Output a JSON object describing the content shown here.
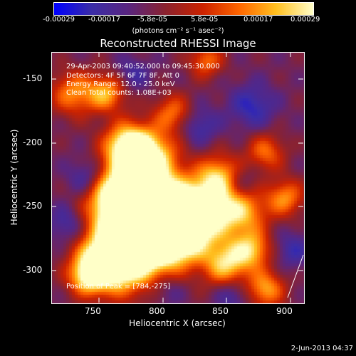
{
  "colorbar": {
    "ticks": [
      "-0.00029",
      "-0.00017",
      "-5.8e-05",
      "5.8e-05",
      "0.00017",
      "0.00029"
    ],
    "units": "(photons cm⁻² s⁻¹ asec⁻²)",
    "colors": [
      "#0000ff",
      "#3b2da8",
      "#5a2680",
      "#8b2230",
      "#cc2200",
      "#ff6600",
      "#ffc020",
      "#ffffc8"
    ]
  },
  "title": "Reconstructed RHESSI Image",
  "info": {
    "line1": "29-Apr-2003 09:40:52.000 to 09:45:30.000",
    "line2": "Detectors: 4F 5F 6F 7F 8F, Att 0",
    "line3": "Energy Range: 12.0 - 25.0 keV",
    "line4": "Clean     Total counts: 1.08E+03",
    "peak": "Position of Peak = [784,-275]"
  },
  "chart_data": {
    "type": "heatmap",
    "title": "Reconstructed RHESSI Image",
    "xlabel": "Heliocentric X (arcsec)",
    "ylabel": "Heliocentric Y (arcsec)",
    "xlim": [
      720,
      910
    ],
    "ylim": [
      -322,
      -130
    ],
    "xticks": [
      "750",
      "800",
      "850",
      "900"
    ],
    "yticks": [
      "-150",
      "-200",
      "-250",
      "-300"
    ],
    "peak": [
      784,
      -275
    ]
  },
  "timestamp": "2-Jun-2013 04:37"
}
